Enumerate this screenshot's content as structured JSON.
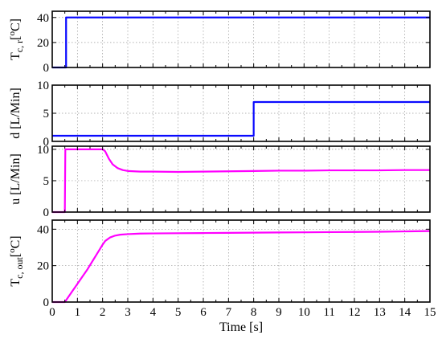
{
  "chart_data": [
    {
      "type": "line",
      "ylabel_main": "T",
      "ylabel_sub": "c, r",
      "ylabel_tail": "[",
      "ylabel_sup": "o",
      "ylabel_unit": "C]",
      "ylim": [
        0,
        45
      ],
      "yticks": [
        0,
        20,
        40
      ],
      "xlim": [
        0,
        15
      ],
      "grid": true,
      "series": [
        {
          "color": "#0a0aff",
          "x": [
            0,
            0.48,
            0.55,
            0.55,
            15
          ],
          "y": [
            0,
            0,
            0,
            40,
            40
          ]
        }
      ]
    },
    {
      "type": "line",
      "ylabel_main": "d [L/Min]",
      "ylim": [
        0,
        10
      ],
      "yticks": [
        0,
        5,
        10
      ],
      "xlim": [
        0,
        15
      ],
      "grid": true,
      "series": [
        {
          "color": "#0a0aff",
          "x": [
            0,
            8,
            8,
            15
          ],
          "y": [
            1,
            1,
            7,
            7
          ]
        }
      ]
    },
    {
      "type": "line",
      "ylabel_main": "u [L/Min]",
      "ylim": [
        0,
        10.5
      ],
      "yticks": [
        0,
        5,
        10
      ],
      "xlim": [
        0,
        15
      ],
      "grid": true,
      "series": [
        {
          "color": "#ff00ff",
          "x": [
            0,
            0.45,
            0.5,
            0.52,
            2,
            2.1,
            2.25,
            2.4,
            2.6,
            2.8,
            3.0,
            3.5,
            4,
            5,
            6,
            7,
            8,
            9,
            10,
            11,
            12,
            13,
            14,
            15
          ],
          "y": [
            0,
            0,
            0,
            10,
            10,
            9.7,
            8.5,
            7.6,
            7.0,
            6.7,
            6.55,
            6.45,
            6.45,
            6.4,
            6.45,
            6.5,
            6.55,
            6.6,
            6.6,
            6.65,
            6.65,
            6.65,
            6.7,
            6.7
          ]
        }
      ]
    },
    {
      "type": "line",
      "ylabel_main": "T",
      "ylabel_sub": "c, out",
      "ylabel_tail": "[",
      "ylabel_sup": "o",
      "ylabel_unit": "C]",
      "ylim": [
        0,
        45
      ],
      "yticks": [
        0,
        20,
        40
      ],
      "xlim": [
        0,
        15
      ],
      "xticks": [
        0,
        0.5,
        1,
        1.5,
        2,
        2.5,
        3,
        3.5,
        4,
        4.5,
        5,
        5.5,
        6,
        6.5,
        7,
        7.5,
        8,
        8.5,
        9,
        9.5,
        10,
        10.5,
        11,
        11.5,
        12,
        12.5,
        13,
        13.5,
        14,
        14.5,
        15
      ],
      "xticklabels": [
        "0",
        "1",
        "2",
        "3",
        "4",
        "5",
        "6",
        "7",
        "8",
        "9",
        "10",
        "11",
        "12",
        "13",
        "14",
        "15"
      ],
      "xlabel": "Time [s]",
      "grid": true,
      "series": [
        {
          "color": "#ff00ff",
          "x": [
            0,
            0.45,
            0.5,
            0.55,
            0.8,
            1.0,
            1.2,
            1.4,
            1.6,
            1.8,
            2.0,
            2.1,
            2.3,
            2.5,
            2.7,
            3.0,
            3.5,
            4,
            5,
            6,
            7,
            8,
            9,
            10,
            11,
            12,
            13,
            14,
            15
          ],
          "y": [
            0,
            0,
            0,
            1.0,
            6,
            10,
            14,
            18,
            22.5,
            27,
            31.5,
            33.5,
            35.5,
            36.5,
            37.0,
            37.3,
            37.6,
            37.7,
            37.8,
            37.9,
            38.0,
            38.1,
            38.2,
            38.3,
            38.4,
            38.5,
            38.6,
            38.8,
            39.0
          ]
        }
      ]
    }
  ]
}
